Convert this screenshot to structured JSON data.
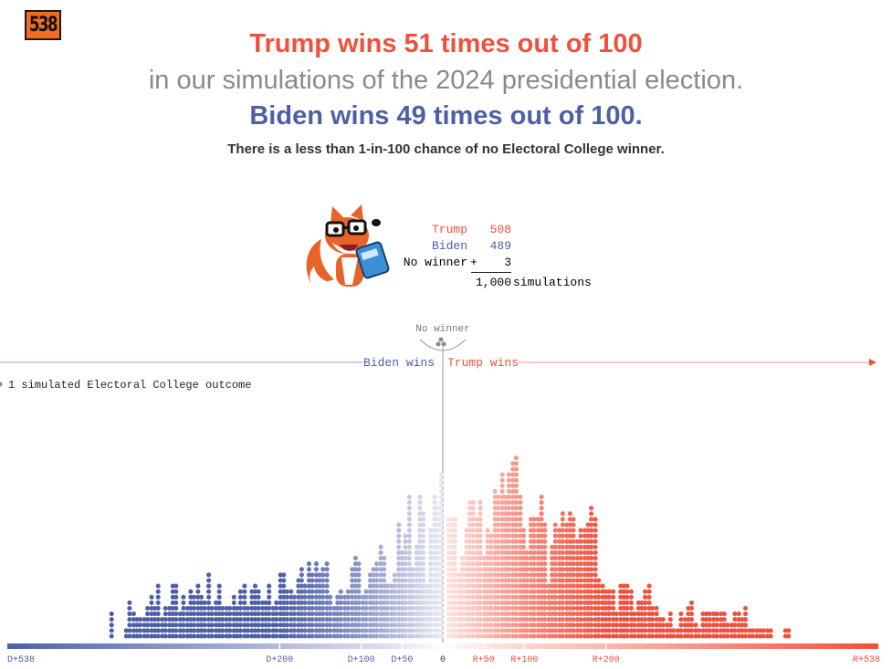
{
  "logo": "538",
  "headline": {
    "trump_line": "Trump wins 51 times out of 100",
    "subtitle": "in our simulations of the 2024 presidential election.",
    "biden_line": "Biden wins 49 times out of 100.",
    "note": "There is a less than 1-in-100 chance of no Electoral College winner."
  },
  "tally": {
    "rows": [
      {
        "label": "Trump",
        "value": "508",
        "color": "#f0503c"
      },
      {
        "label": "Biden",
        "value": "489",
        "color": "#4e5fa8"
      },
      {
        "label": "No winner",
        "value": "3",
        "color": "#333333"
      }
    ],
    "plus_sign": "+",
    "total": "1,000",
    "total_label": "simulations"
  },
  "colors": {
    "trump": "#f0503c",
    "biden": "#4e5fa8",
    "gray": "#8a8a8a"
  },
  "chart_data": {
    "type": "dot histogram",
    "legend": "1 simulated Electoral College outcome",
    "no_winner_label": "No winner",
    "no_winner_dots": 3,
    "left_label": "Biden wins",
    "right_label": "Trump wins",
    "x_ticks": [
      "D+538",
      "D+200",
      "D+100",
      "D+50",
      "0",
      "R+50",
      "R+100",
      "R+200",
      "R+538"
    ],
    "x_tick_values": [
      -538,
      -200,
      -100,
      -50,
      0,
      50,
      100,
      200,
      538
    ],
    "column_margin_values": [
      -406,
      -402,
      -393,
      -388,
      -384,
      -379,
      -375,
      -371,
      -366,
      -362,
      -357,
      -353,
      -349,
      -344,
      -340,
      -335,
      -331,
      -327,
      -322,
      -318,
      -313,
      -309,
      -305,
      -300,
      -296,
      -292,
      -287,
      -283,
      -278,
      -274,
      -270,
      -265,
      -261,
      -256,
      -252,
      -248,
      -243,
      -239,
      -234,
      -230,
      -226,
      -221,
      -217,
      -213,
      -208,
      -204,
      -199,
      -195,
      -191,
      -186,
      -182,
      -177,
      -173,
      -169,
      -164,
      -160,
      -155,
      -151,
      -147,
      -142,
      -138,
      -133,
      -129,
      -125,
      -120,
      -116,
      -111,
      -107,
      -103,
      -98,
      -94,
      -89,
      -85,
      -81,
      -76,
      -72,
      -68,
      -63,
      -59,
      -54,
      -50,
      -46,
      -41,
      -37,
      -32,
      -28,
      -24,
      -19,
      -15,
      -10,
      -6,
      -2,
      7,
      11,
      15,
      20,
      24,
      29,
      33,
      37,
      42,
      46,
      51,
      55,
      59,
      64,
      68,
      73,
      77,
      81,
      86,
      90,
      95,
      99,
      103,
      108,
      112,
      117,
      121,
      125,
      130,
      134,
      138,
      143,
      147,
      152,
      156,
      160,
      165,
      169,
      174,
      178,
      182,
      187,
      191,
      196,
      200,
      204,
      209,
      213,
      218,
      222,
      226,
      231,
      235,
      240,
      244,
      248,
      253,
      257,
      262,
      266,
      270,
      275,
      279,
      283,
      288,
      292,
      297,
      301,
      305,
      310,
      314,
      319,
      323,
      327,
      332,
      336,
      341,
      345,
      349,
      354,
      358,
      363,
      367,
      371,
      376,
      380,
      385,
      389,
      393,
      398,
      402,
      420,
      424,
      428
    ],
    "column_counts": [
      5,
      0,
      0,
      2,
      7,
      5,
      4,
      4,
      4,
      6,
      8,
      6,
      10,
      4,
      6,
      6,
      10,
      10,
      5,
      8,
      6,
      9,
      8,
      10,
      8,
      7,
      12,
      6,
      7,
      10,
      6,
      6,
      6,
      8,
      6,
      9,
      10,
      6,
      9,
      10,
      9,
      7,
      7,
      10,
      6,
      7,
      12,
      12,
      9,
      9,
      8,
      11,
      13,
      10,
      14,
      12,
      14,
      12,
      13,
      14,
      8,
      6,
      8,
      9,
      8,
      9,
      13,
      15,
      14,
      8,
      9,
      12,
      13,
      14,
      17,
      15,
      10,
      10,
      12,
      21,
      16,
      19,
      26,
      13,
      17,
      26,
      23,
      10,
      20,
      26,
      24,
      30,
      22,
      22,
      22,
      12,
      15,
      20,
      25,
      25,
      22,
      25,
      15,
      20,
      19,
      27,
      26,
      30,
      26,
      30,
      32,
      33,
      26,
      20,
      16,
      22,
      22,
      22,
      26,
      21,
      10,
      17,
      21,
      20,
      23,
      21,
      23,
      22,
      18,
      20,
      20,
      21,
      24,
      22,
      11,
      10,
      9,
      9,
      9,
      5,
      10,
      10,
      10,
      9,
      5,
      7,
      7,
      9,
      10,
      6,
      6,
      4,
      4,
      3,
      5,
      2,
      2,
      5,
      4,
      6,
      7,
      3,
      2,
      5,
      5,
      5,
      5,
      5,
      5,
      5,
      3,
      3,
      5,
      5,
      4,
      6,
      2,
      2,
      2,
      2,
      2,
      2,
      2,
      2,
      2
    ],
    "xlim": [
      -538,
      538
    ]
  }
}
